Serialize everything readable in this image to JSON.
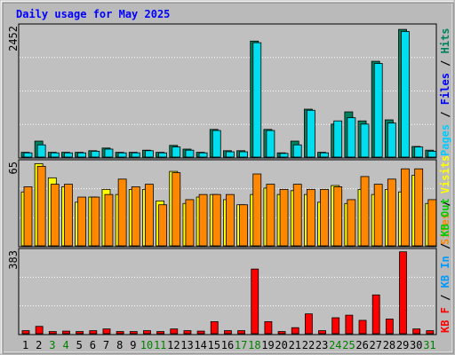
{
  "colors": {
    "frame_outer": "#bababa",
    "frame_light": "#f2f2f2",
    "frame_dark": "#7a7a7a",
    "plot_bg": "#c0c0c0",
    "grid": "#ffffff",
    "title": "#0000ff",
    "axis_text": "#000000",
    "weekend_text": "#008000",
    "hits": "#00805c",
    "files": "#00ddee",
    "pages": "#00ccff",
    "visits": "#ffff00",
    "sites": "#ff8800",
    "kbf": "#ff0000",
    "kbin": "#0099ff",
    "kbout": "#00cc00",
    "bar_stroke": "#000000"
  },
  "chart_data": {
    "type": "bar",
    "title": "Daily usage for May 2025",
    "categories": [
      "1",
      "2",
      "3",
      "4",
      "5",
      "6",
      "7",
      "8",
      "9",
      "10",
      "11",
      "12",
      "13",
      "14",
      "15",
      "16",
      "17",
      "18",
      "19",
      "20",
      "21",
      "22",
      "23",
      "24",
      "25",
      "26",
      "27",
      "28",
      "29",
      "30",
      "31"
    ],
    "weekend_days": [
      "3",
      "4",
      "10",
      "11",
      "17",
      "18",
      "24",
      "25",
      "31"
    ],
    "panels": [
      {
        "name": "hits-files-pages",
        "ymax_label": "2452",
        "ymax": 2452,
        "legend": [
          {
            "text": "Pages",
            "color": "#00ccff"
          },
          {
            "text": " / ",
            "color": "#000000"
          },
          {
            "text": "Files",
            "color": "#0000ff"
          },
          {
            "text": " / ",
            "color": "#000000"
          },
          {
            "text": "Hits",
            "color": "#00805c"
          }
        ],
        "series": [
          {
            "name": "Hits",
            "color_key": "hits",
            "values": [
              90,
              300,
              90,
              90,
              90,
              120,
              170,
              90,
              90,
              130,
              90,
              220,
              150,
              90,
              520,
              120,
              120,
              2180,
              520,
              80,
              300,
              900,
              90,
              620,
              850,
              680,
              1800,
              700,
              2400,
              200,
              130
            ]
          },
          {
            "name": "Files",
            "color_key": "files",
            "values": [
              80,
              230,
              80,
              80,
              80,
              110,
              150,
              80,
              80,
              120,
              80,
              190,
              130,
              80,
              500,
              100,
              100,
              2150,
              500,
              70,
              230,
              880,
              80,
              680,
              740,
              620,
              1760,
              640,
              2360,
              190,
              110
            ]
          }
        ]
      },
      {
        "name": "visits-sites",
        "ymax_label": "65",
        "ymax": 65,
        "legend": [
          {
            "text": "Sites",
            "color": "#ff8800"
          },
          {
            "text": " / ",
            "color": "#000000"
          },
          {
            "text": "Visits",
            "color": "#ffff00"
          }
        ],
        "series": [
          {
            "name": "Visits",
            "color_key": "visits",
            "values": [
              42,
              64,
              53,
              46,
              34,
              38,
              44,
              40,
              44,
              44,
              35,
              58,
              33,
              38,
              40,
              36,
              32,
              40,
              45,
              40,
              43,
              40,
              34,
              47,
              33,
              44,
              40,
              44,
              42,
              55,
              33
            ]
          },
          {
            "name": "Sites",
            "color_key": "sites",
            "values": [
              46,
              62,
              48,
              48,
              38,
              38,
              40,
              52,
              46,
              48,
              32,
              57,
              36,
              40,
              40,
              40,
              32,
              56,
              48,
              44,
              48,
              44,
              44,
              46,
              36,
              54,
              48,
              52,
              60,
              60,
              36
            ]
          }
        ]
      },
      {
        "name": "kb-traffic",
        "ymax_label": "383",
        "ymax": 383,
        "legend": [
          {
            "text": "KB F",
            "color": "#ff0000"
          },
          {
            "text": " / ",
            "color": "#000000"
          },
          {
            "text": "KB In",
            "color": "#0099ff"
          },
          {
            "text": " / ",
            "color": "#000000"
          },
          {
            "text": "KB Out",
            "color": "#00cc00"
          }
        ],
        "series": [
          {
            "name": "KB F",
            "color_key": "kbf",
            "values": [
              14,
              34,
              10,
              12,
              10,
              14,
              22,
              10,
              10,
              14,
              10,
              22,
              14,
              12,
              56,
              14,
              14,
              300,
              56,
              10,
              28,
              92,
              14,
              74,
              86,
              62,
              180,
              68,
              380,
              22,
              14
            ]
          }
        ]
      }
    ]
  }
}
